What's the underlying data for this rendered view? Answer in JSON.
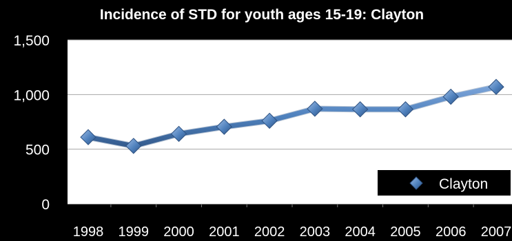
{
  "chart_data": {
    "type": "line",
    "title": "Incidence of STD for youth ages 15-19: Clayton",
    "xlabel": "",
    "ylabel": "",
    "categories": [
      "1998",
      "1999",
      "2000",
      "2001",
      "2002",
      "2003",
      "2004",
      "2005",
      "2006",
      "2007"
    ],
    "series": [
      {
        "name": "Clayton",
        "values": [
          610,
          530,
          640,
          705,
          760,
          870,
          865,
          865,
          980,
          1070
        ],
        "color": "#4F81BD"
      }
    ],
    "ylim": [
      0,
      1500
    ],
    "yticks": [
      {
        "value": 0,
        "label": "0"
      },
      {
        "value": 500,
        "label": "500"
      },
      {
        "value": 1000,
        "label": "1,000"
      },
      {
        "value": 1500,
        "label": "1,500"
      }
    ],
    "grid": true,
    "legend_position": "bottom-right",
    "colors": {
      "background": "#000000",
      "plot_area": "#FFFFFF",
      "gridline": "#A6A6A6",
      "text": "#FFFFFF",
      "series": "#4F81BD"
    }
  }
}
